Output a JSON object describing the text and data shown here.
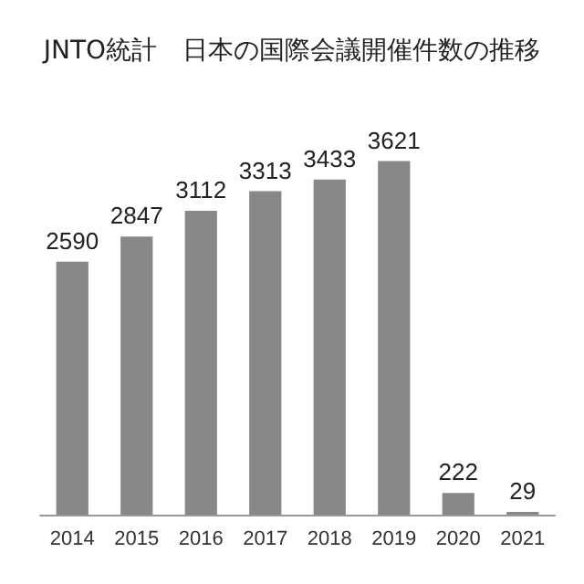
{
  "chart_data": {
    "type": "bar",
    "title": "JNTO統計　日本の国際会議開催件数の推移",
    "categories": [
      "2014",
      "2015",
      "2016",
      "2017",
      "2018",
      "2019",
      "2020",
      "2021"
    ],
    "values": [
      2590,
      2847,
      3112,
      3313,
      3433,
      3621,
      222,
      29
    ],
    "color": "#888888",
    "data_labels": true
  }
}
